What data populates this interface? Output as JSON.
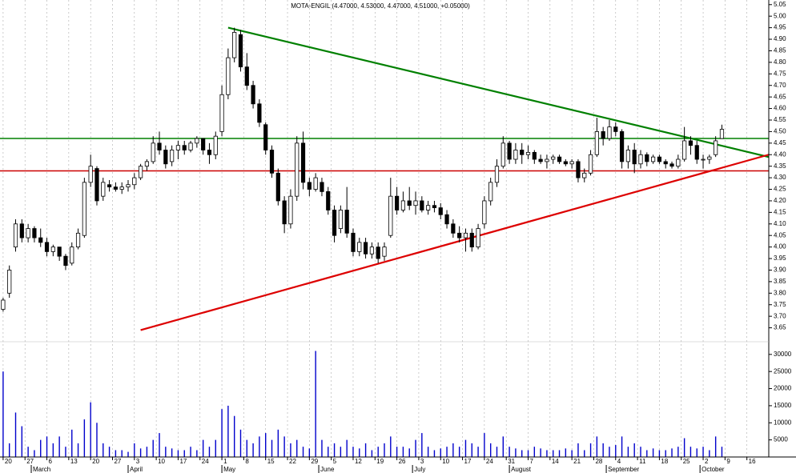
{
  "chart_data": {
    "type": "candlestick",
    "title": "MOTA-ENGIL (4.47000, 4.53000, 4.47000, 4.51000, +0.05000)",
    "xlim": [
      -1,
      245
    ],
    "xticks": [
      {
        "value": 0,
        "label": "20"
      },
      {
        "value": 7,
        "label": "27"
      },
      {
        "value": 14,
        "label": "6"
      },
      {
        "value": 21,
        "label": "13"
      },
      {
        "value": 28,
        "label": "20"
      },
      {
        "value": 35,
        "label": "27"
      },
      {
        "value": 42,
        "label": "3"
      },
      {
        "value": 49,
        "label": "10"
      },
      {
        "value": 56,
        "label": "17"
      },
      {
        "value": 63,
        "label": "24"
      },
      {
        "value": 70,
        "label": "1"
      },
      {
        "value": 77,
        "label": "8"
      },
      {
        "value": 84,
        "label": "15"
      },
      {
        "value": 91,
        "label": "22"
      },
      {
        "value": 98,
        "label": "29"
      },
      {
        "value": 105,
        "label": "5"
      },
      {
        "value": 112,
        "label": "12"
      },
      {
        "value": 119,
        "label": "19"
      },
      {
        "value": 126,
        "label": "26"
      },
      {
        "value": 133,
        "label": "3"
      },
      {
        "value": 140,
        "label": "10"
      },
      {
        "value": 147,
        "label": "17"
      },
      {
        "value": 154,
        "label": "24"
      },
      {
        "value": 161,
        "label": "31"
      },
      {
        "value": 168,
        "label": "7"
      },
      {
        "value": 175,
        "label": "14"
      },
      {
        "value": 182,
        "label": "21"
      },
      {
        "value": 189,
        "label": "28"
      },
      {
        "value": 196,
        "label": "4"
      },
      {
        "value": 203,
        "label": "11"
      },
      {
        "value": 210,
        "label": "18"
      },
      {
        "value": 217,
        "label": "25"
      },
      {
        "value": 224,
        "label": "2"
      },
      {
        "value": 231,
        "label": "9"
      },
      {
        "value": 238,
        "label": "16"
      }
    ],
    "month_ticks": [
      {
        "value": 9,
        "label": "March"
      },
      {
        "value": 40,
        "label": "April"
      },
      {
        "value": 70,
        "label": "May"
      },
      {
        "value": 101,
        "label": "June"
      },
      {
        "value": 131,
        "label": "July"
      },
      {
        "value": 162,
        "label": "August"
      },
      {
        "value": 193,
        "label": "September"
      },
      {
        "value": 223,
        "label": "October"
      }
    ],
    "ylim": [
      3.6,
      5.07
    ],
    "yticks": [
      3.65,
      {
        "value": 3.7,
        "label": "3.70"
      },
      3.75,
      {
        "value": 3.8,
        "label": "3.80"
      },
      3.85,
      {
        "value": 3.9,
        "label": "3.90"
      },
      3.95,
      {
        "value": 4,
        "label": "4.00"
      },
      4.05,
      {
        "value": 4.1,
        "label": "4.10"
      },
      4.15,
      {
        "value": 4.2,
        "label": "4.20"
      },
      4.25,
      {
        "value": 4.3,
        "label": "4.30"
      },
      4.35,
      {
        "value": 4.4,
        "label": "4.40"
      },
      4.45,
      {
        "value": 4.5,
        "label": "4.50"
      },
      4.55,
      {
        "value": 4.6,
        "label": "4.60"
      },
      4.65,
      {
        "value": 4.7,
        "label": "4.70"
      },
      4.75,
      {
        "value": 4.8,
        "label": "4.80"
      },
      4.85,
      {
        "value": 4.9,
        "label": "4.90"
      },
      4.95,
      {
        "value": 5,
        "label": "5.00"
      },
      5.05
    ],
    "y2lim": [
      0,
      33000
    ],
    "y2ticks": [
      5000,
      10000,
      15000,
      20000,
      25000,
      30000
    ],
    "grid": "x",
    "up_color": "#ffffff",
    "down_color": "#000000",
    "volume_color": "#0000cc",
    "hlines": [
      {
        "y": 4.47,
        "color": "#008000"
      },
      {
        "y": 4.33,
        "color": "#cc0000"
      }
    ],
    "trendlines": [
      {
        "color": "#008000",
        "x": [
          72,
          245
        ],
        "y": [
          4.95,
          4.39
        ]
      },
      {
        "color": "#dd0000",
        "x": [
          44,
          245
        ],
        "y": [
          3.64,
          4.4
        ]
      }
    ],
    "candles": [
      {
        "x": 0,
        "o": 3.73,
        "h": 3.78,
        "l": 3.72,
        "c": 3.77,
        "v": 25000
      },
      {
        "x": 2,
        "o": 3.8,
        "h": 3.92,
        "l": 3.78,
        "c": 3.9,
        "v": 4000
      },
      {
        "x": 4,
        "o": 4,
        "h": 4.12,
        "l": 3.98,
        "c": 4.1,
        "v": 13000
      },
      {
        "x": 6,
        "o": 4.1,
        "h": 4.12,
        "l": 4.02,
        "c": 4.04,
        "v": 9000
      },
      {
        "x": 8,
        "o": 4.04,
        "h": 4.1,
        "l": 4.02,
        "c": 4.08,
        "v": 3000
      },
      {
        "x": 10,
        "o": 4.08,
        "h": 4.09,
        "l": 4.02,
        "c": 4.04,
        "v": 2000
      },
      {
        "x": 12,
        "o": 4.04,
        "h": 4.08,
        "l": 4,
        "c": 4.02,
        "v": 5000
      },
      {
        "x": 14,
        "o": 4.02,
        "h": 4.04,
        "l": 3.96,
        "c": 3.98,
        "v": 6000
      },
      {
        "x": 16,
        "o": 3.98,
        "h": 4.01,
        "l": 3.96,
        "c": 4,
        "v": 4000
      },
      {
        "x": 18,
        "o": 4,
        "h": 4,
        "l": 3.94,
        "c": 3.96,
        "v": 6000
      },
      {
        "x": 20,
        "o": 3.96,
        "h": 3.97,
        "l": 3.9,
        "c": 3.92,
        "v": 3000
      },
      {
        "x": 22,
        "o": 3.93,
        "h": 4.02,
        "l": 3.92,
        "c": 4,
        "v": 8000
      },
      {
        "x": 24,
        "o": 4,
        "h": 4.08,
        "l": 3.99,
        "c": 4.06,
        "v": 4000
      },
      {
        "x": 26,
        "o": 4.05,
        "h": 4.3,
        "l": 4.04,
        "c": 4.28,
        "v": 11000
      },
      {
        "x": 28,
        "o": 4.28,
        "h": 4.4,
        "l": 4.26,
        "c": 4.35,
        "v": 16000
      },
      {
        "x": 30,
        "o": 4.34,
        "h": 4.35,
        "l": 4.18,
        "c": 4.2,
        "v": 10000
      },
      {
        "x": 32,
        "o": 4.22,
        "h": 4.3,
        "l": 4.2,
        "c": 4.28,
        "v": 4000
      },
      {
        "x": 34,
        "o": 4.27,
        "h": 4.29,
        "l": 4.24,
        "c": 4.26,
        "v": 3000
      },
      {
        "x": 36,
        "o": 4.26,
        "h": 4.28,
        "l": 4.24,
        "c": 4.25,
        "v": 2000
      },
      {
        "x": 38,
        "o": 4.25,
        "h": 4.28,
        "l": 4.23,
        "c": 4.26,
        "v": 2000
      },
      {
        "x": 40,
        "o": 4.26,
        "h": 4.29,
        "l": 4.24,
        "c": 4.27,
        "v": 1500
      },
      {
        "x": 42,
        "o": 4.27,
        "h": 4.32,
        "l": 4.25,
        "c": 4.3,
        "v": 4000
      },
      {
        "x": 44,
        "o": 4.3,
        "h": 4.36,
        "l": 4.29,
        "c": 4.35,
        "v": 2500
      },
      {
        "x": 46,
        "o": 4.35,
        "h": 4.38,
        "l": 4.33,
        "c": 4.37,
        "v": 3000
      },
      {
        "x": 48,
        "o": 4.37,
        "h": 4.48,
        "l": 4.36,
        "c": 4.45,
        "v": 5000
      },
      {
        "x": 50,
        "o": 4.45,
        "h": 4.5,
        "l": 4.4,
        "c": 4.42,
        "v": 7000
      },
      {
        "x": 52,
        "o": 4.42,
        "h": 4.44,
        "l": 4.34,
        "c": 4.36,
        "v": 3000
      },
      {
        "x": 54,
        "o": 4.37,
        "h": 4.44,
        "l": 4.35,
        "c": 4.42,
        "v": 2500
      },
      {
        "x": 56,
        "o": 4.42,
        "h": 4.46,
        "l": 4.38,
        "c": 4.44,
        "v": 2000
      },
      {
        "x": 58,
        "o": 4.44,
        "h": 4.46,
        "l": 4.4,
        "c": 4.42,
        "v": 2000
      },
      {
        "x": 60,
        "o": 4.42,
        "h": 4.46,
        "l": 4.41,
        "c": 4.45,
        "v": 3000
      },
      {
        "x": 62,
        "o": 4.45,
        "h": 4.48,
        "l": 4.43,
        "c": 4.47,
        "v": 2000
      },
      {
        "x": 64,
        "o": 4.47,
        "h": 4.47,
        "l": 4.4,
        "c": 4.42,
        "v": 5000
      },
      {
        "x": 66,
        "o": 4.42,
        "h": 4.45,
        "l": 4.36,
        "c": 4.4,
        "v": 3000
      },
      {
        "x": 68,
        "o": 4.4,
        "h": 4.5,
        "l": 4.38,
        "c": 4.48,
        "v": 5000
      },
      {
        "x": 70,
        "o": 4.5,
        "h": 4.7,
        "l": 4.48,
        "c": 4.66,
        "v": 14000
      },
      {
        "x": 72,
        "o": 4.66,
        "h": 4.86,
        "l": 4.64,
        "c": 4.82,
        "v": 15000
      },
      {
        "x": 74,
        "o": 4.82,
        "h": 4.95,
        "l": 4.8,
        "c": 4.93,
        "v": 12000
      },
      {
        "x": 76,
        "o": 4.92,
        "h": 4.94,
        "l": 4.76,
        "c": 4.78,
        "v": 8000
      },
      {
        "x": 78,
        "o": 4.78,
        "h": 4.84,
        "l": 4.68,
        "c": 4.7,
        "v": 5000
      },
      {
        "x": 80,
        "o": 4.7,
        "h": 4.72,
        "l": 4.6,
        "c": 4.62,
        "v": 4000
      },
      {
        "x": 82,
        "o": 4.62,
        "h": 4.64,
        "l": 4.52,
        "c": 4.54,
        "v": 6000
      },
      {
        "x": 84,
        "o": 4.53,
        "h": 4.54,
        "l": 4.4,
        "c": 4.42,
        "v": 7000
      },
      {
        "x": 86,
        "o": 4.42,
        "h": 4.44,
        "l": 4.3,
        "c": 4.32,
        "v": 5000
      },
      {
        "x": 88,
        "o": 4.32,
        "h": 4.34,
        "l": 4.18,
        "c": 4.2,
        "v": 8000
      },
      {
        "x": 90,
        "o": 4.2,
        "h": 4.22,
        "l": 4.06,
        "c": 4.1,
        "v": 6000
      },
      {
        "x": 92,
        "o": 4.1,
        "h": 4.25,
        "l": 4.08,
        "c": 4.22,
        "v": 4000
      },
      {
        "x": 94,
        "o": 4.22,
        "h": 4.48,
        "l": 4.2,
        "c": 4.45,
        "v": 5000
      },
      {
        "x": 96,
        "o": 4.45,
        "h": 4.5,
        "l": 4.25,
        "c": 4.28,
        "v": 3000
      },
      {
        "x": 98,
        "o": 4.28,
        "h": 4.3,
        "l": 4.22,
        "c": 4.25,
        "v": 2500
      },
      {
        "x": 100,
        "o": 4.25,
        "h": 4.32,
        "l": 4.24,
        "c": 4.3,
        "v": 31000
      },
      {
        "x": 102,
        "o": 4.28,
        "h": 4.3,
        "l": 4.22,
        "c": 4.24,
        "v": 5000
      },
      {
        "x": 104,
        "o": 4.24,
        "h": 4.26,
        "l": 4.14,
        "c": 4.16,
        "v": 3000
      },
      {
        "x": 106,
        "o": 4.16,
        "h": 4.18,
        "l": 4.02,
        "c": 4.05,
        "v": 4000
      },
      {
        "x": 108,
        "o": 4.08,
        "h": 4.18,
        "l": 4.06,
        "c": 4.16,
        "v": 3000
      },
      {
        "x": 110,
        "o": 4.16,
        "h": 4.26,
        "l": 4.04,
        "c": 4.06,
        "v": 5000
      },
      {
        "x": 112,
        "o": 4.06,
        "h": 4.08,
        "l": 3.96,
        "c": 3.98,
        "v": 3000
      },
      {
        "x": 114,
        "o": 3.98,
        "h": 4.04,
        "l": 3.96,
        "c": 4.02,
        "v": 2500
      },
      {
        "x": 116,
        "o": 4.02,
        "h": 4.04,
        "l": 3.95,
        "c": 3.97,
        "v": 4000
      },
      {
        "x": 118,
        "o": 3.97,
        "h": 4.02,
        "l": 3.95,
        "c": 4,
        "v": 2000
      },
      {
        "x": 120,
        "o": 4,
        "h": 4.02,
        "l": 3.93,
        "c": 3.95,
        "v": 3000
      },
      {
        "x": 122,
        "o": 3.96,
        "h": 4.02,
        "l": 3.94,
        "c": 4,
        "v": 4000
      },
      {
        "x": 124,
        "o": 4.05,
        "h": 4.3,
        "l": 4.04,
        "c": 4.22,
        "v": 6000
      },
      {
        "x": 126,
        "o": 4.22,
        "h": 4.26,
        "l": 4.14,
        "c": 4.16,
        "v": 3000
      },
      {
        "x": 128,
        "o": 4.16,
        "h": 4.24,
        "l": 4.15,
        "c": 4.2,
        "v": 3000
      },
      {
        "x": 130,
        "o": 4.2,
        "h": 4.26,
        "l": 4.16,
        "c": 4.18,
        "v": 2500
      },
      {
        "x": 132,
        "o": 4.18,
        "h": 4.24,
        "l": 4.14,
        "c": 4.2,
        "v": 5000
      },
      {
        "x": 134,
        "o": 4.2,
        "h": 4.22,
        "l": 4.15,
        "c": 4.16,
        "v": 7000
      },
      {
        "x": 136,
        "o": 4.16,
        "h": 4.2,
        "l": 4.14,
        "c": 4.18,
        "v": 3000
      },
      {
        "x": 138,
        "o": 4.18,
        "h": 4.2,
        "l": 4.15,
        "c": 4.17,
        "v": 2000
      },
      {
        "x": 140,
        "o": 4.17,
        "h": 4.19,
        "l": 4.12,
        "c": 4.14,
        "v": 2500
      },
      {
        "x": 142,
        "o": 4.14,
        "h": 4.16,
        "l": 4.08,
        "c": 4.1,
        "v": 3000
      },
      {
        "x": 144,
        "o": 4.1,
        "h": 4.12,
        "l": 4.04,
        "c": 4.06,
        "v": 4000
      },
      {
        "x": 146,
        "o": 4.06,
        "h": 4.09,
        "l": 4.02,
        "c": 4.04,
        "v": 3000
      },
      {
        "x": 148,
        "o": 4.04,
        "h": 4.08,
        "l": 3.98,
        "c": 4.06,
        "v": 5000
      },
      {
        "x": 150,
        "o": 4.06,
        "h": 4.08,
        "l": 3.98,
        "c": 4,
        "v": 4000
      },
      {
        "x": 152,
        "o": 4,
        "h": 4.1,
        "l": 3.99,
        "c": 4.08,
        "v": 3000
      },
      {
        "x": 154,
        "o": 4.1,
        "h": 4.22,
        "l": 4.08,
        "c": 4.2,
        "v": 7000
      },
      {
        "x": 156,
        "o": 4.2,
        "h": 4.3,
        "l": 4.18,
        "c": 4.28,
        "v": 4000
      },
      {
        "x": 158,
        "o": 4.28,
        "h": 4.38,
        "l": 4.26,
        "c": 4.35,
        "v": 3000
      },
      {
        "x": 160,
        "o": 4.35,
        "h": 4.48,
        "l": 4.34,
        "c": 4.45,
        "v": 6000
      },
      {
        "x": 162,
        "o": 4.45,
        "h": 4.46,
        "l": 4.36,
        "c": 4.38,
        "v": 3000
      },
      {
        "x": 164,
        "o": 4.38,
        "h": 4.45,
        "l": 4.36,
        "c": 4.42,
        "v": 2500
      },
      {
        "x": 166,
        "o": 4.42,
        "h": 4.45,
        "l": 4.36,
        "c": 4.4,
        "v": 2000
      },
      {
        "x": 168,
        "o": 4.4,
        "h": 4.44,
        "l": 4.38,
        "c": 4.41,
        "v": 2000
      },
      {
        "x": 170,
        "o": 4.41,
        "h": 4.42,
        "l": 4.36,
        "c": 4.38,
        "v": 3000
      },
      {
        "x": 172,
        "o": 4.38,
        "h": 4.4,
        "l": 4.36,
        "c": 4.37,
        "v": 2500
      },
      {
        "x": 174,
        "o": 4.37,
        "h": 4.4,
        "l": 4.34,
        "c": 4.38,
        "v": 2000
      },
      {
        "x": 176,
        "o": 4.38,
        "h": 4.4,
        "l": 4.36,
        "c": 4.39,
        "v": 2000
      },
      {
        "x": 178,
        "o": 4.39,
        "h": 4.4,
        "l": 4.36,
        "c": 4.37,
        "v": 2000
      },
      {
        "x": 180,
        "o": 4.37,
        "h": 4.38,
        "l": 4.35,
        "c": 4.36,
        "v": 2500
      },
      {
        "x": 182,
        "o": 4.36,
        "h": 4.38,
        "l": 4.34,
        "c": 4.37,
        "v": 2000
      },
      {
        "x": 184,
        "o": 4.37,
        "h": 4.38,
        "l": 4.28,
        "c": 4.3,
        "v": 4000
      },
      {
        "x": 186,
        "o": 4.3,
        "h": 4.34,
        "l": 4.28,
        "c": 4.32,
        "v": 2000
      },
      {
        "x": 188,
        "o": 4.32,
        "h": 4.42,
        "l": 4.31,
        "c": 4.4,
        "v": 4000
      },
      {
        "x": 190,
        "o": 4.4,
        "h": 4.56,
        "l": 4.39,
        "c": 4.5,
        "v": 6000
      },
      {
        "x": 192,
        "o": 4.5,
        "h": 4.52,
        "l": 4.44,
        "c": 4.47,
        "v": 4000
      },
      {
        "x": 194,
        "o": 4.47,
        "h": 4.55,
        "l": 4.46,
        "c": 4.52,
        "v": 3000
      },
      {
        "x": 196,
        "o": 4.52,
        "h": 4.54,
        "l": 4.48,
        "c": 4.5,
        "v": 3500
      },
      {
        "x": 198,
        "o": 4.5,
        "h": 4.51,
        "l": 4.34,
        "c": 4.37,
        "v": 6000
      },
      {
        "x": 200,
        "o": 4.37,
        "h": 4.44,
        "l": 4.34,
        "c": 4.42,
        "v": 3000
      },
      {
        "x": 202,
        "o": 4.42,
        "h": 4.45,
        "l": 4.32,
        "c": 4.36,
        "v": 4000
      },
      {
        "x": 204,
        "o": 4.36,
        "h": 4.42,
        "l": 4.34,
        "c": 4.4,
        "v": 3000
      },
      {
        "x": 206,
        "o": 4.4,
        "h": 4.41,
        "l": 4.35,
        "c": 4.37,
        "v": 2000
      },
      {
        "x": 208,
        "o": 4.37,
        "h": 4.4,
        "l": 4.36,
        "c": 4.39,
        "v": 2500
      },
      {
        "x": 210,
        "o": 4.39,
        "h": 4.4,
        "l": 4.36,
        "c": 4.37,
        "v": 2000
      },
      {
        "x": 212,
        "o": 4.37,
        "h": 4.38,
        "l": 4.34,
        "c": 4.36,
        "v": 2000
      },
      {
        "x": 214,
        "o": 4.36,
        "h": 4.37,
        "l": 4.34,
        "c": 4.35,
        "v": 2500
      },
      {
        "x": 216,
        "o": 4.35,
        "h": 4.4,
        "l": 4.34,
        "c": 4.38,
        "v": 3000
      },
      {
        "x": 218,
        "o": 4.38,
        "h": 4.52,
        "l": 4.37,
        "c": 4.46,
        "v": 5500
      },
      {
        "x": 220,
        "o": 4.46,
        "h": 4.48,
        "l": 4.4,
        "c": 4.44,
        "v": 3000
      },
      {
        "x": 222,
        "o": 4.44,
        "h": 4.46,
        "l": 4.36,
        "c": 4.38,
        "v": 2500
      },
      {
        "x": 224,
        "o": 4.38,
        "h": 4.4,
        "l": 4.34,
        "c": 4.38,
        "v": 3000
      },
      {
        "x": 226,
        "o": 4.38,
        "h": 4.4,
        "l": 4.36,
        "c": 4.39,
        "v": 2000
      },
      {
        "x": 228,
        "o": 4.4,
        "h": 4.48,
        "l": 4.39,
        "c": 4.46,
        "v": 6000
      },
      {
        "x": 230,
        "o": 4.47,
        "h": 4.53,
        "l": 4.47,
        "c": 4.51,
        "v": 3000
      }
    ]
  }
}
